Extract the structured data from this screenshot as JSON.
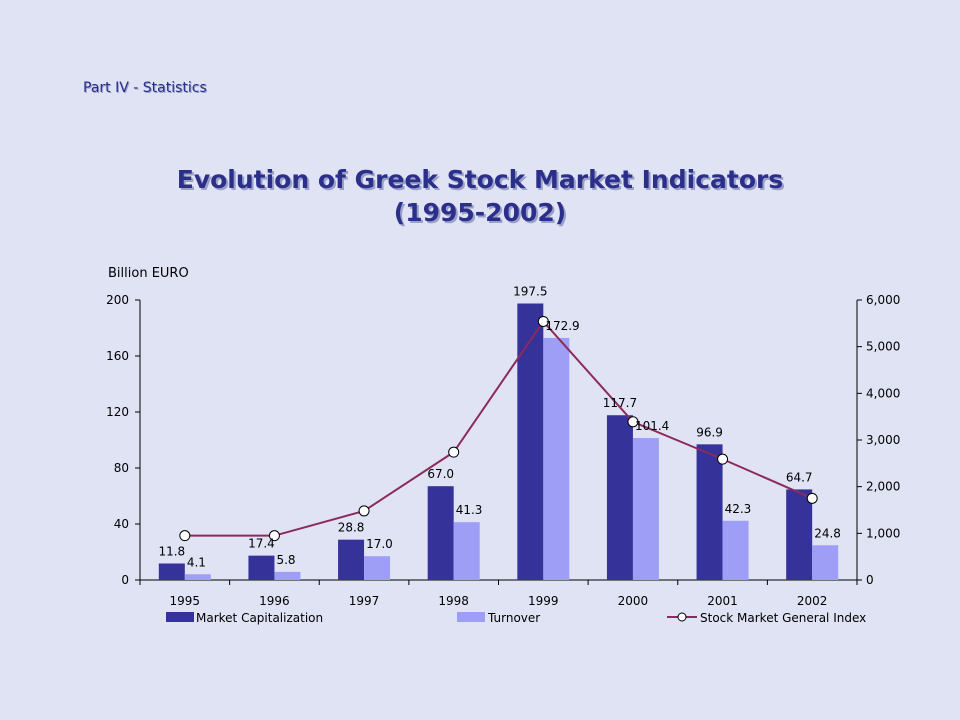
{
  "header": {
    "section": "Part IV - Statistics",
    "title_line1": "Evolution of Greek Stock Market Indicators",
    "title_line2": "(1995-2002)"
  },
  "chart_data": {
    "type": "bar",
    "title": "Evolution of Greek Stock Market Indicators (1995-2002)",
    "ylabel": "Billion EURO",
    "categories": [
      "1995",
      "1996",
      "1997",
      "1998",
      "1999",
      "2000",
      "2001",
      "2002"
    ],
    "ylim": [
      0,
      200
    ],
    "yticks": [
      0,
      40,
      80,
      120,
      160,
      200
    ],
    "y2lim": [
      0,
      6000
    ],
    "y2ticks": [
      "0",
      "1,000",
      "2,000",
      "3,000",
      "4,000",
      "5,000",
      "6,000"
    ],
    "legend_position": "bottom",
    "series": [
      {
        "name": "Market Capitalization",
        "type": "bar",
        "axis": "left",
        "color": "#35339a",
        "values": [
          11.8,
          17.4,
          28.8,
          67.0,
          197.5,
          117.7,
          96.9,
          64.7
        ],
        "labels": [
          "11.8",
          "17.4",
          "28.8",
          "67.0",
          "197.5",
          "117.7",
          "96.9",
          "64.7"
        ]
      },
      {
        "name": "Turnover",
        "type": "bar",
        "axis": "right-of-pair",
        "color": "#9e9ef7",
        "values": [
          4.1,
          5.8,
          17.0,
          41.3,
          172.9,
          101.4,
          42.3,
          24.8
        ],
        "labels": [
          "4.1",
          "5.8",
          "17.0",
          "41.3",
          "172.9",
          "101.4",
          "42.3",
          "24.8"
        ]
      },
      {
        "name": "Stock Market General Index",
        "type": "line",
        "axis": "right",
        "color": "#8c2a5c",
        "values": [
          950,
          950,
          1480,
          2740,
          5540,
          3390,
          2590,
          1750
        ]
      }
    ]
  }
}
